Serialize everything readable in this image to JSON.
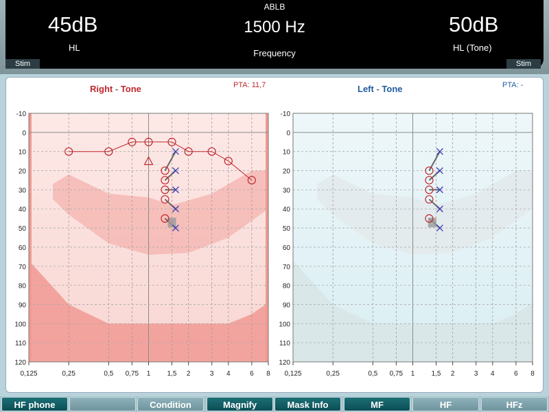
{
  "header": {
    "mode": "ABLB",
    "frequency": "1500 Hz",
    "frequency_label": "Frequency",
    "left_level": "45dB",
    "left_unit": "HL",
    "right_level": "50dB",
    "right_unit": "HL (Tone)",
    "stim_left": "Stim",
    "stim_right": "Stim"
  },
  "right_panel": {
    "title_ear": "Right",
    "title_sep": " - ",
    "title_type": "Tone",
    "pta": "PTA: 11,7"
  },
  "left_panel": {
    "title_ear": "Left",
    "title_sep": " - ",
    "title_type": "Tone",
    "pta": "PTA:  -"
  },
  "axes": {
    "y_ticks": [
      "-10",
      "0",
      "10",
      "20",
      "30",
      "40",
      "50",
      "60",
      "70",
      "80",
      "90",
      "100",
      "110",
      "120"
    ],
    "x_ticks": [
      "0,125",
      "0,25",
      "0,5",
      "0,75",
      "1",
      "1,5",
      "2",
      "3",
      "4",
      "6",
      "8"
    ]
  },
  "chart_data": [
    {
      "type": "scatter",
      "title": "Right - Tone",
      "xscale": "log",
      "xlim": [
        0.125,
        8
      ],
      "ylim": [
        -10,
        120
      ],
      "y_inverted": true,
      "grid": true,
      "series": [
        {
          "marker": "circle",
          "x": [
            0.25,
            0.5,
            0.75,
            1,
            1.5,
            2,
            3,
            4,
            6
          ],
          "y": [
            10,
            10,
            5,
            5,
            5,
            10,
            10,
            15,
            25
          ]
        },
        {
          "marker": "triangle",
          "x": [
            1
          ],
          "y": [
            15
          ]
        }
      ],
      "ablb": {
        "ref_marker": "circle",
        "ref_x": 1.33,
        "ref_y": [
          20,
          25,
          30,
          35,
          45
        ],
        "test_marker": "x",
        "test_x": 1.6,
        "test_y": [
          10,
          20,
          30,
          40,
          50
        ]
      }
    },
    {
      "type": "scatter",
      "title": "Left - Tone",
      "xscale": "log",
      "xlim": [
        0.125,
        8
      ],
      "ylim": [
        -10,
        120
      ],
      "y_inverted": true,
      "grid": true,
      "series": [],
      "ablb": {
        "ref_marker": "circle",
        "ref_x": 1.33,
        "ref_y": [
          20,
          25,
          30,
          35,
          45
        ],
        "test_marker": "x",
        "test_x": 1.6,
        "test_y": [
          10,
          20,
          30,
          40,
          50
        ]
      }
    }
  ],
  "footer": {
    "buttons": [
      {
        "label": "HF phone",
        "style": "dark"
      },
      {
        "label": "",
        "style": "light"
      },
      {
        "label": "Condition",
        "style": "light"
      },
      {
        "label": "Magnify",
        "style": "dark"
      },
      {
        "label": "Mask Info",
        "style": "dark"
      },
      {
        "label": "MF",
        "style": "dark"
      },
      {
        "label": "HF",
        "style": "light"
      },
      {
        "label": "HFz",
        "style": "light"
      }
    ]
  },
  "colors": {
    "right": "#c0282e",
    "left": "#1f5c9e",
    "x_marker": "#3a3ab5",
    "right_band": "#f4b9b4",
    "left_band": "#e3eaec"
  }
}
